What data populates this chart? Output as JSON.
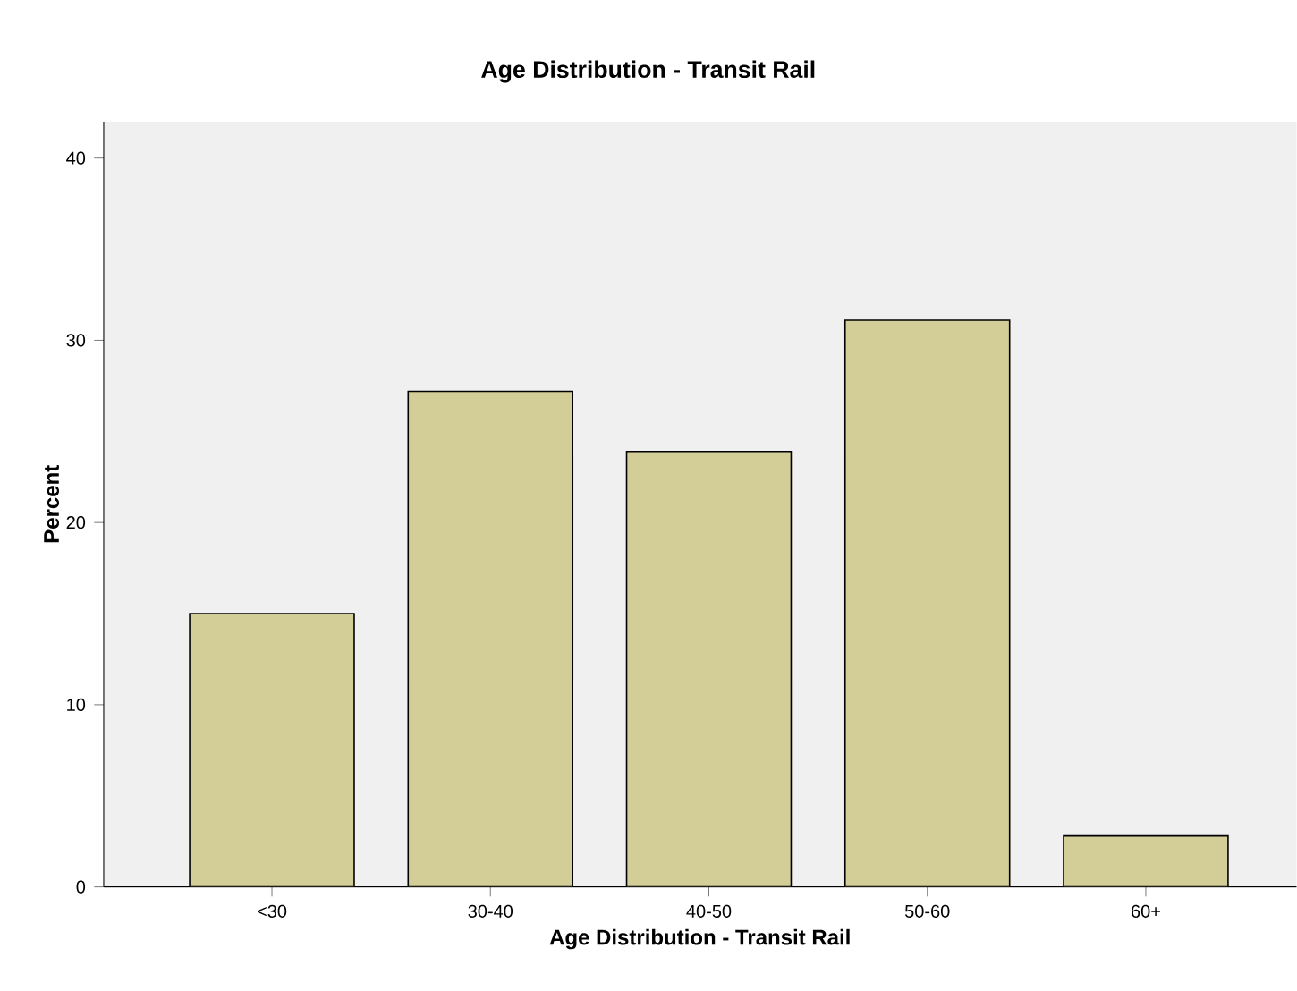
{
  "chart_data": {
    "type": "bar",
    "title": "Age Distribution - Transit Rail",
    "xlabel": "Age Distribution - Transit Rail",
    "ylabel": "Percent",
    "categories": [
      "<30",
      "30-40",
      "40-50",
      "50-60",
      "60+"
    ],
    "values": [
      15.0,
      27.2,
      23.9,
      31.1,
      2.8
    ],
    "color": "#d3ce97",
    "ylim": [
      0,
      42
    ],
    "yticks": [
      0,
      10,
      20,
      30,
      40
    ],
    "grid": false
  }
}
